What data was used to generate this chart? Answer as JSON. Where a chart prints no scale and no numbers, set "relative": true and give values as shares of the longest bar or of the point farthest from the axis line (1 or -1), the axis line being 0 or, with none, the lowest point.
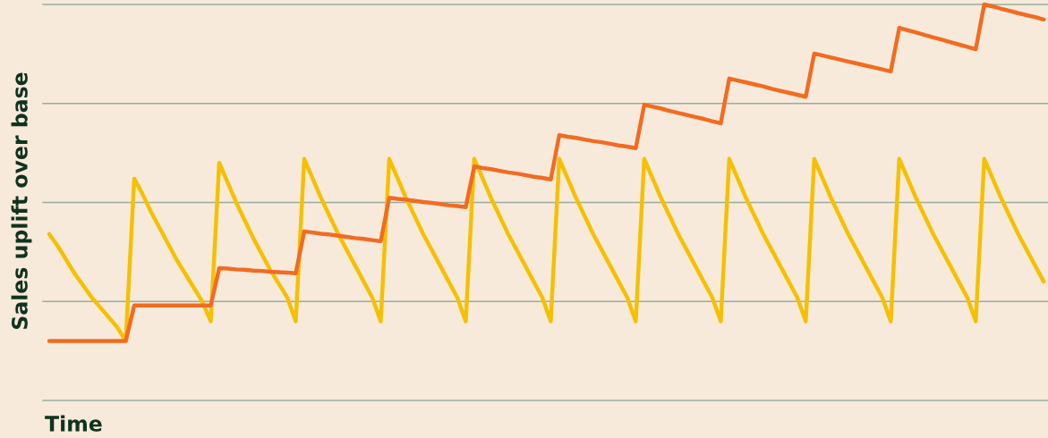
{
  "chart_data": {
    "type": "line",
    "relative": true,
    "xlabel": "Time",
    "ylabel": "Sales uplift over base",
    "grid": "y",
    "marker": "none",
    "line_style": "solid",
    "categories": [
      null,
      null,
      null,
      null,
      null,
      null,
      null,
      null,
      null,
      null,
      null,
      null,
      null,
      null,
      null,
      null,
      null,
      null,
      null,
      null,
      null,
      null,
      null,
      null,
      null,
      null,
      null,
      null,
      null,
      null,
      null,
      null,
      null,
      null,
      null,
      null,
      null,
      null,
      null,
      null,
      null,
      null,
      null,
      null,
      null,
      null,
      null,
      null,
      null,
      null,
      null,
      null,
      null,
      null,
      null,
      null,
      null,
      null,
      null,
      null,
      null,
      null,
      null,
      null,
      null,
      null,
      null,
      null,
      null,
      null,
      null,
      null,
      null,
      null,
      null,
      null,
      null,
      null,
      null,
      null,
      null,
      null,
      null,
      null,
      null,
      null,
      null,
      null,
      null,
      null,
      null,
      null,
      null,
      null,
      null,
      null,
      null,
      null,
      null,
      null,
      null,
      null,
      null,
      null,
      null,
      null,
      null,
      null,
      null,
      null,
      null,
      null,
      null,
      null,
      null,
      null,
      null,
      null
    ],
    "series": [
      {
        "color": "#f5c000",
        "values": [
          0.42,
          0.39,
          0.355,
          0.32,
          0.29,
          0.26,
          0.235,
          0.21,
          0.185,
          0.15,
          0.56,
          0.52,
          0.475,
          0.435,
          0.395,
          0.355,
          0.32,
          0.285,
          0.25,
          0.2,
          0.6,
          0.55,
          0.5,
          0.455,
          0.41,
          0.37,
          0.33,
          0.295,
          0.26,
          0.2,
          0.61,
          0.56,
          0.51,
          0.465,
          0.42,
          0.38,
          0.34,
          0.3,
          0.26,
          0.2,
          0.61,
          0.56,
          0.51,
          0.465,
          0.42,
          0.38,
          0.34,
          0.3,
          0.26,
          0.2,
          0.61,
          0.56,
          0.51,
          0.465,
          0.42,
          0.38,
          0.34,
          0.3,
          0.26,
          0.2,
          0.61,
          0.56,
          0.51,
          0.465,
          0.42,
          0.38,
          0.34,
          0.3,
          0.26,
          0.2,
          0.61,
          0.56,
          0.51,
          0.465,
          0.42,
          0.38,
          0.34,
          0.3,
          0.26,
          0.2,
          0.61,
          0.56,
          0.51,
          0.465,
          0.42,
          0.38,
          0.34,
          0.3,
          0.26,
          0.2,
          0.61,
          0.56,
          0.51,
          0.465,
          0.42,
          0.38,
          0.34,
          0.3,
          0.26,
          0.2,
          0.61,
          0.56,
          0.51,
          0.465,
          0.42,
          0.38,
          0.34,
          0.3,
          0.26,
          0.2,
          0.61,
          0.56,
          0.51,
          0.465,
          0.42,
          0.38,
          0.34,
          0.3
        ]
      },
      {
        "color": "#f26b21",
        "values": [
          0.15,
          0.15,
          0.15,
          0.15,
          0.15,
          0.15,
          0.15,
          0.15,
          0.15,
          0.15,
          0.24,
          0.24,
          0.24,
          0.24,
          0.24,
          0.24,
          0.24,
          0.24,
          0.24,
          0.24,
          0.334,
          0.333,
          0.331,
          0.33,
          0.328,
          0.327,
          0.325,
          0.324,
          0.323,
          0.321,
          0.427,
          0.424,
          0.421,
          0.419,
          0.416,
          0.413,
          0.41,
          0.408,
          0.405,
          0.402,
          0.512,
          0.509,
          0.507,
          0.504,
          0.501,
          0.499,
          0.496,
          0.493,
          0.491,
          0.488,
          0.591,
          0.587,
          0.584,
          0.58,
          0.576,
          0.573,
          0.569,
          0.565,
          0.562,
          0.558,
          0.67,
          0.666,
          0.663,
          0.659,
          0.655,
          0.652,
          0.648,
          0.644,
          0.641,
          0.637,
          0.747,
          0.742,
          0.737,
          0.731,
          0.726,
          0.721,
          0.716,
          0.711,
          0.705,
          0.7,
          0.813,
          0.808,
          0.803,
          0.798,
          0.793,
          0.787,
          0.782,
          0.777,
          0.772,
          0.767,
          0.876,
          0.871,
          0.866,
          0.861,
          0.856,
          0.851,
          0.846,
          0.841,
          0.836,
          0.831,
          0.941,
          0.935,
          0.929,
          0.923,
          0.917,
          0.911,
          0.905,
          0.899,
          0.893,
          0.887,
          1.0,
          0.995,
          0.989,
          0.984,
          0.978,
          0.973,
          0.968,
          0.962
        ]
      }
    ]
  }
}
